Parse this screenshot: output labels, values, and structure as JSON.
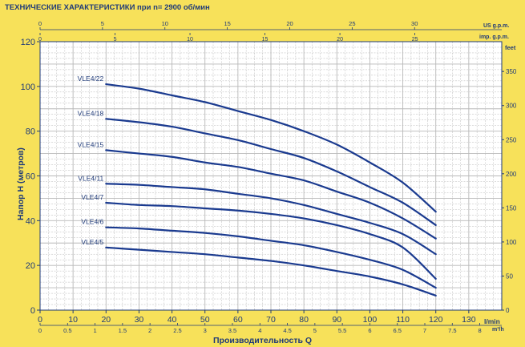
{
  "chart_data": {
    "type": "line",
    "title": "ТЕХНИЧЕСКИЕ ХАРАКТЕРИСТИКИ при n= 2900 об/мин",
    "xlabel": "Производительность Q",
    "ylabel": "Напор H   (метров)",
    "x_unit_lmin": "l/min",
    "x_unit_m3h": "m³/h",
    "right_unit": "feet",
    "top_unit_us": "US g.p.m.",
    "top_unit_imp": "imp. g.p.m.",
    "xlim": [
      0,
      140
    ],
    "ylim": [
      0,
      120
    ],
    "grid": true,
    "x_ticks_lmin": [
      "0",
      "10",
      "20",
      "30",
      "40",
      "50",
      "60",
      "70",
      "80",
      "90",
      "100",
      "110",
      "120",
      "130"
    ],
    "x_ticks_m3h": [
      "0",
      "0.5",
      "1",
      "1.5",
      "2",
      "2.5",
      "3",
      "3.5",
      "4",
      "4.5",
      "5",
      "5.5",
      "6",
      "6.5",
      "7",
      "7.5",
      "8"
    ],
    "y_ticks_left": [
      "0",
      "20",
      "40",
      "60",
      "80",
      "100",
      "120"
    ],
    "y_ticks_right": [
      "0",
      "50",
      "100",
      "150",
      "200",
      "250",
      "300",
      "350"
    ],
    "top_ticks_us": [
      "0",
      "5",
      "10",
      "15",
      "20",
      "25",
      "30"
    ],
    "top_ticks_imp": [
      "0",
      "5",
      "10",
      "15",
      "20",
      "25"
    ],
    "series": [
      {
        "name": "VLE4/22",
        "x": [
          20,
          30,
          40,
          50,
          60,
          70,
          80,
          90,
          100,
          110,
          120
        ],
        "y": [
          101,
          99,
          96,
          93,
          89,
          85,
          80,
          74,
          66,
          57,
          44
        ]
      },
      {
        "name": "VLE4/18",
        "x": [
          20,
          30,
          40,
          50,
          60,
          70,
          80,
          90,
          100,
          110,
          120
        ],
        "y": [
          85.5,
          84,
          82,
          79,
          76,
          72,
          68,
          62,
          55,
          48,
          38
        ]
      },
      {
        "name": "VLE4/15",
        "x": [
          20,
          30,
          40,
          50,
          60,
          70,
          80,
          90,
          100,
          110,
          120
        ],
        "y": [
          71.5,
          70,
          68.5,
          66,
          64,
          61,
          58,
          53,
          48,
          41,
          32
        ]
      },
      {
        "name": "VLE4/11",
        "x": [
          20,
          30,
          40,
          50,
          60,
          70,
          80,
          90,
          100,
          110,
          120
        ],
        "y": [
          56.5,
          56,
          55,
          54,
          52,
          50,
          47,
          43,
          39,
          34,
          25
        ]
      },
      {
        "name": "VLE4/7",
        "x": [
          20,
          30,
          40,
          50,
          60,
          70,
          80,
          90,
          100,
          110,
          120
        ],
        "y": [
          48,
          47,
          46.5,
          45.5,
          44.5,
          43,
          41,
          38,
          34,
          28,
          14
        ]
      },
      {
        "name": "VLE4/6",
        "x": [
          20,
          30,
          40,
          50,
          60,
          70,
          80,
          90,
          100,
          110,
          120
        ],
        "y": [
          37,
          36.5,
          35.5,
          34.5,
          33,
          31,
          29,
          26,
          22.5,
          18,
          10
        ]
      },
      {
        "name": "VLE4/5",
        "x": [
          20,
          30,
          40,
          50,
          60,
          70,
          80,
          90,
          100,
          110,
          120
        ],
        "y": [
          28,
          27,
          26,
          25,
          23.5,
          22,
          20,
          17.5,
          15,
          11.5,
          6.5
        ]
      }
    ],
    "colors": {
      "background": "#f7e15a",
      "plot": "#ffffff",
      "grid": "#b8b8b8",
      "axis": "#1f3a78",
      "curve": "#1a3a8f"
    }
  }
}
